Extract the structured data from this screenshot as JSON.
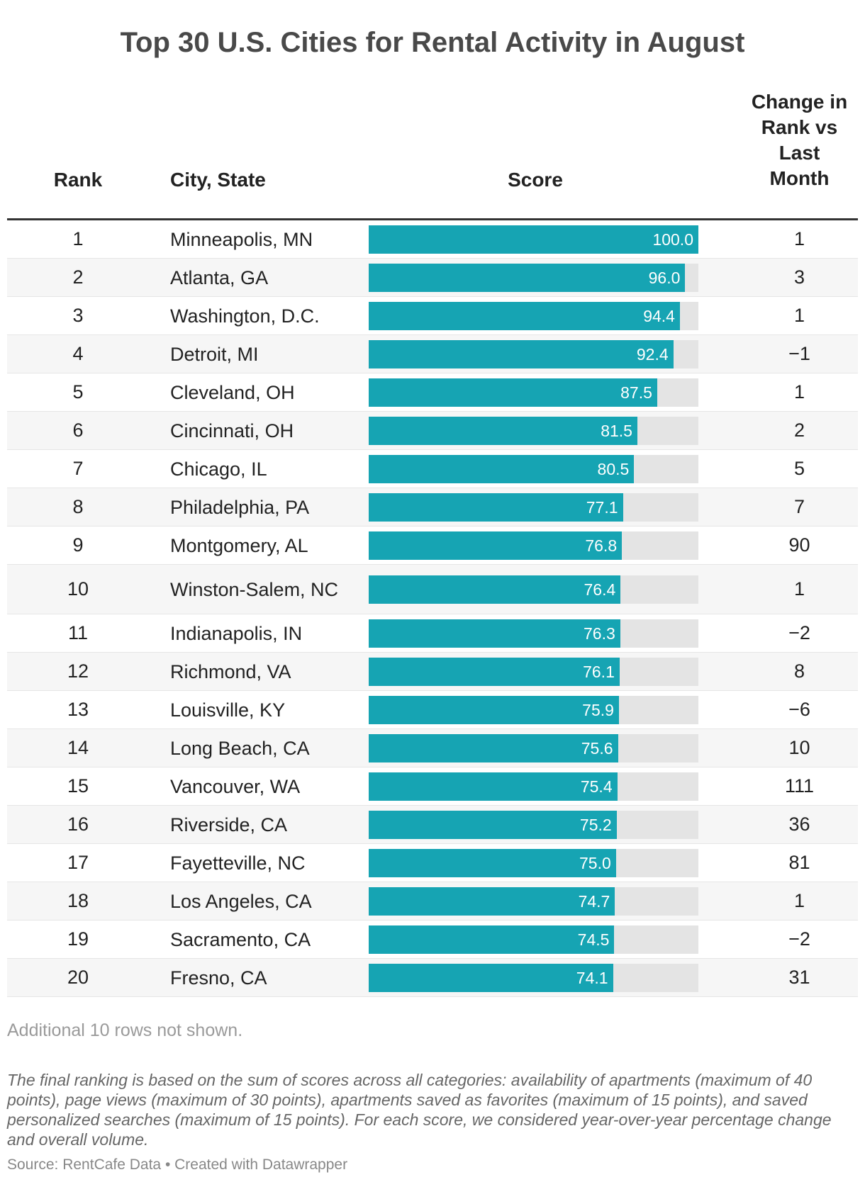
{
  "title": "Top 30 U.S. Cities for Rental Activity in August",
  "headers": {
    "rank": "Rank",
    "city": "City, State",
    "score": "Score",
    "change_lines": [
      "Change in",
      "Rank vs",
      "Last",
      "Month"
    ]
  },
  "colors": {
    "bar": "#16a4b3",
    "track": "#e4e4e4"
  },
  "chart_data": {
    "type": "table",
    "title": "Top 30 U.S. Cities for Rental Activity in August",
    "columns": [
      "Rank",
      "City, State",
      "Score",
      "Change in Rank vs Last Month"
    ],
    "score_max": 100,
    "rows": [
      {
        "rank": "1",
        "city": "Minneapolis, MN",
        "score": 100.0,
        "score_label": "100.0",
        "change": "1"
      },
      {
        "rank": "2",
        "city": "Atlanta, GA",
        "score": 96.0,
        "score_label": "96.0",
        "change": "3"
      },
      {
        "rank": "3",
        "city": "Washington, D.C.",
        "score": 94.4,
        "score_label": "94.4",
        "change": "1"
      },
      {
        "rank": "4",
        "city": "Detroit, MI",
        "score": 92.4,
        "score_label": "92.4",
        "change": "−1"
      },
      {
        "rank": "5",
        "city": "Cleveland, OH",
        "score": 87.5,
        "score_label": "87.5",
        "change": "1"
      },
      {
        "rank": "6",
        "city": "Cincinnati, OH",
        "score": 81.5,
        "score_label": "81.5",
        "change": "2"
      },
      {
        "rank": "7",
        "city": "Chicago, IL",
        "score": 80.5,
        "score_label": "80.5",
        "change": "5"
      },
      {
        "rank": "8",
        "city": "Philadelphia, PA",
        "score": 77.1,
        "score_label": "77.1",
        "change": "7"
      },
      {
        "rank": "9",
        "city": "Montgomery, AL",
        "score": 76.8,
        "score_label": "76.8",
        "change": "90"
      },
      {
        "rank": "10",
        "city": "Winston-Salem, NC",
        "score": 76.4,
        "score_label": "76.4",
        "change": "1"
      },
      {
        "rank": "11",
        "city": "Indianapolis, IN",
        "score": 76.3,
        "score_label": "76.3",
        "change": "−2"
      },
      {
        "rank": "12",
        "city": "Richmond, VA",
        "score": 76.1,
        "score_label": "76.1",
        "change": "8"
      },
      {
        "rank": "13",
        "city": "Louisville, KY",
        "score": 75.9,
        "score_label": "75.9",
        "change": "−6"
      },
      {
        "rank": "14",
        "city": "Long Beach, CA",
        "score": 75.6,
        "score_label": "75.6",
        "change": "10"
      },
      {
        "rank": "15",
        "city": "Vancouver, WA",
        "score": 75.4,
        "score_label": "75.4",
        "change": "111"
      },
      {
        "rank": "16",
        "city": "Riverside, CA",
        "score": 75.2,
        "score_label": "75.2",
        "change": "36"
      },
      {
        "rank": "17",
        "city": "Fayetteville, NC",
        "score": 75.0,
        "score_label": "75.0",
        "change": "81"
      },
      {
        "rank": "18",
        "city": "Los Angeles, CA",
        "score": 74.7,
        "score_label": "74.7",
        "change": "1"
      },
      {
        "rank": "19",
        "city": "Sacramento, CA",
        "score": 74.5,
        "score_label": "74.5",
        "change": "−2"
      },
      {
        "rank": "20",
        "city": "Fresno, CA",
        "score": 74.1,
        "score_label": "74.1",
        "change": "31"
      }
    ]
  },
  "note": "Additional 10 rows not shown.",
  "footnote": "The final ranking is based on the sum of scores across all categories: availability of apartments (maximum of 40 points), page views (maximum of 30 points), apartments saved as favorites (maximum of 15 points), and saved personalized searches (maximum of 15 points). For each score, we considered year-over-year percentage change and overall volume.",
  "source": "Source: RentCafe Data • Created with Datawrapper"
}
